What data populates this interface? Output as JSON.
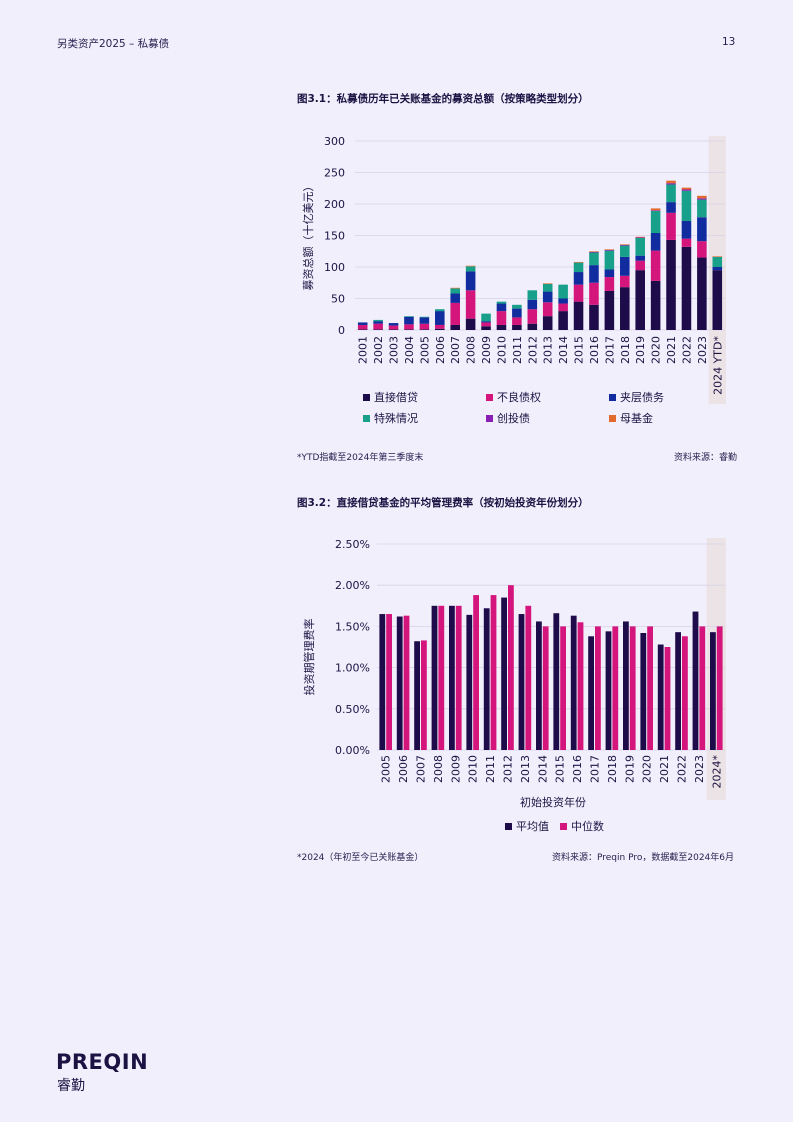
{
  "header": {
    "left": "另类资产2025 – 私募债",
    "page": "13"
  },
  "fig1": {
    "title": "图3.1：私募债历年已关账基金的募资总额（按策略类型划分）",
    "note": "*YTD指截至2024年第三季度末",
    "source": "资料来源：睿勤"
  },
  "fig2": {
    "title": "图3.2：直接借贷基金的平均管理费率（按初始投资年份划分）",
    "note": "*2024（年初至今已关账基金）",
    "source": "资料来源：Preqin Pro，数据截至2024年6月"
  },
  "logo": {
    "name": "PREQIN",
    "sub": "睿勤"
  },
  "chart_data": [
    {
      "type": "bar",
      "stacked": true,
      "ylabel": "募资总额（十亿美元）",
      "ylim": [
        0,
        300
      ],
      "yticks": [
        0,
        50,
        100,
        150,
        200,
        250,
        300
      ],
      "grid": true,
      "legend_position": "bottom",
      "categories": [
        "2001",
        "2002",
        "2003",
        "2004",
        "2005",
        "2006",
        "2007",
        "2008",
        "2009",
        "2010",
        "2011",
        "2012",
        "2013",
        "2014",
        "2015",
        "2016",
        "2017",
        "2018",
        "2019",
        "2020",
        "2021",
        "2022",
        "2023",
        "2024 YTD*"
      ],
      "highlight_category": "2024 YTD*",
      "series": [
        {
          "name": "直接借贷",
          "color": "#1e0b4a",
          "values": [
            1,
            1,
            1,
            1,
            1,
            2,
            8,
            18,
            6,
            8,
            8,
            10,
            22,
            30,
            45,
            40,
            62,
            68,
            95,
            78,
            143,
            132,
            115,
            95
          ]
        },
        {
          "name": "不良债权",
          "color": "#d4157c",
          "values": [
            7,
            9,
            6,
            8,
            9,
            6,
            35,
            45,
            6,
            22,
            12,
            23,
            22,
            12,
            27,
            35,
            22,
            18,
            15,
            48,
            43,
            13,
            26,
            0
          ]
        },
        {
          "name": "夹层债务",
          "color": "#112c9e",
          "values": [
            4,
            4,
            4,
            12,
            10,
            22,
            15,
            30,
            2,
            12,
            14,
            15,
            17,
            8,
            20,
            28,
            12,
            30,
            8,
            28,
            17,
            28,
            38,
            5
          ]
        },
        {
          "name": "特殊情况",
          "color": "#18a08a",
          "values": [
            0,
            2,
            0,
            1,
            1,
            3,
            8,
            8,
            12,
            3,
            6,
            15,
            12,
            22,
            15,
            20,
            30,
            18,
            28,
            35,
            28,
            48,
            28,
            16
          ]
        },
        {
          "name": "创投债",
          "color": "#8a1fb3",
          "values": [
            0,
            0,
            0,
            0,
            0,
            0,
            0,
            0,
            0,
            0,
            0,
            0,
            0,
            0,
            0,
            1,
            1,
            1,
            1,
            1,
            2,
            2,
            2,
            0
          ]
        },
        {
          "name": "母基金",
          "color": "#e36a2f",
          "values": [
            0,
            0,
            0,
            0,
            0,
            0,
            1,
            1,
            0,
            0,
            0,
            0,
            1,
            0,
            1,
            1,
            1,
            1,
            1,
            3,
            4,
            3,
            4,
            1
          ]
        }
      ]
    },
    {
      "type": "bar",
      "xlabel": "初始投资年份",
      "ylabel": "投资期管理费率",
      "ylim": [
        0,
        2.5
      ],
      "yticks": [
        "0.00%",
        "0.50%",
        "1.00%",
        "1.50%",
        "2.00%",
        "2.50%"
      ],
      "grid": true,
      "legend_position": "bottom",
      "categories": [
        "2005",
        "2006",
        "2007",
        "2008",
        "2009",
        "2010",
        "2011",
        "2012",
        "2013",
        "2014",
        "2015",
        "2016",
        "2017",
        "2018",
        "2019",
        "2020",
        "2021",
        "2022",
        "2023",
        "2024*"
      ],
      "highlight_category": "2024*",
      "series": [
        {
          "name": "平均值",
          "color": "#1e0b4a",
          "values": [
            1.65,
            1.62,
            1.32,
            1.75,
            1.75,
            1.64,
            1.72,
            1.85,
            1.65,
            1.56,
            1.66,
            1.63,
            1.38,
            1.44,
            1.56,
            1.42,
            1.28,
            1.43,
            1.68,
            1.43
          ]
        },
        {
          "name": "中位数",
          "color": "#d4157c",
          "values": [
            1.65,
            1.63,
            1.33,
            1.75,
            1.75,
            1.88,
            1.88,
            2.0,
            1.75,
            1.5,
            1.5,
            1.55,
            1.5,
            1.5,
            1.5,
            1.5,
            1.25,
            1.38,
            1.5,
            1.5
          ]
        }
      ]
    }
  ]
}
